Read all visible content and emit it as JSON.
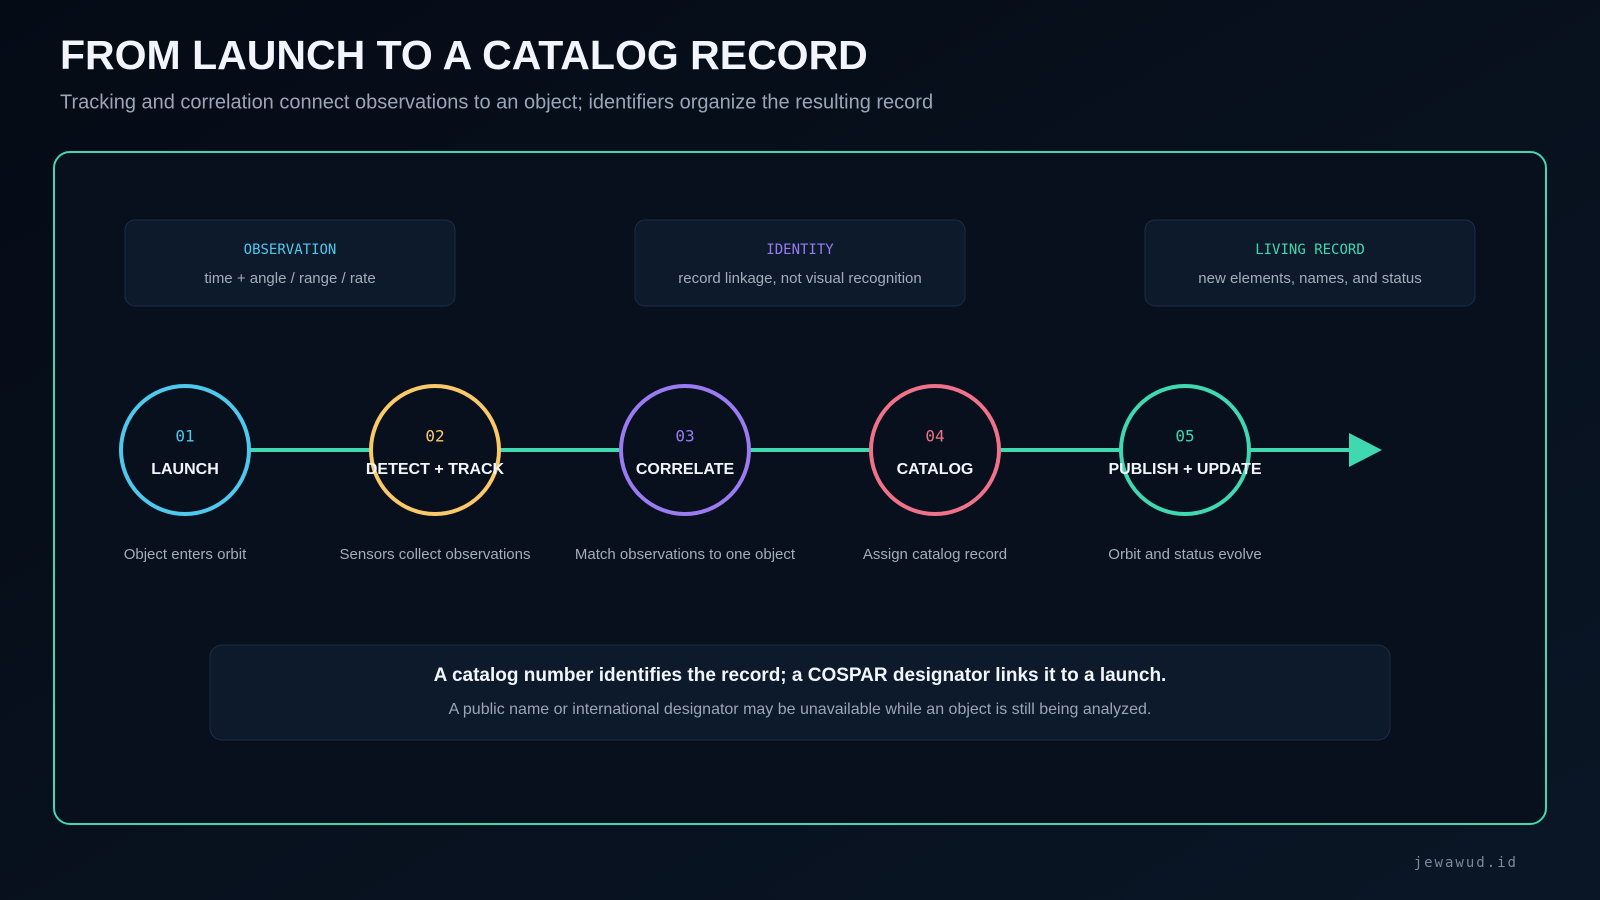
{
  "header": {
    "title": "FROM LAUNCH TO A CATALOG RECORD",
    "subtitle": "Tracking and correlation connect observations to an object; identifiers organize the resulting record"
  },
  "tags": [
    {
      "label": "OBSERVATION",
      "text": "time + angle / range / rate"
    },
    {
      "label": "IDENTITY",
      "text": "record linkage, not visual recognition"
    },
    {
      "label": "LIVING RECORD",
      "text": "new elements, names, and status"
    }
  ],
  "steps": [
    {
      "number": "01",
      "label": "LAUNCH",
      "caption": "Object enters orbit"
    },
    {
      "number": "02",
      "label": "DETECT + TRACK",
      "caption": "Sensors collect observations"
    },
    {
      "number": "03",
      "label": "CORRELATE",
      "caption": "Match observations to one object"
    },
    {
      "number": "04",
      "label": "CATALOG",
      "caption": "Assign catalog record"
    },
    {
      "number": "05",
      "label": "PUBLISH + UPDATE",
      "caption": "Orbit and status evolve"
    }
  ],
  "note": {
    "title": "A catalog number identifies the record; a COSPAR designator links it to a launch.",
    "text": "A public name or international designator may be unavailable while an object is still being analyzed."
  },
  "footer": {
    "credit": "jewawud.id"
  }
}
